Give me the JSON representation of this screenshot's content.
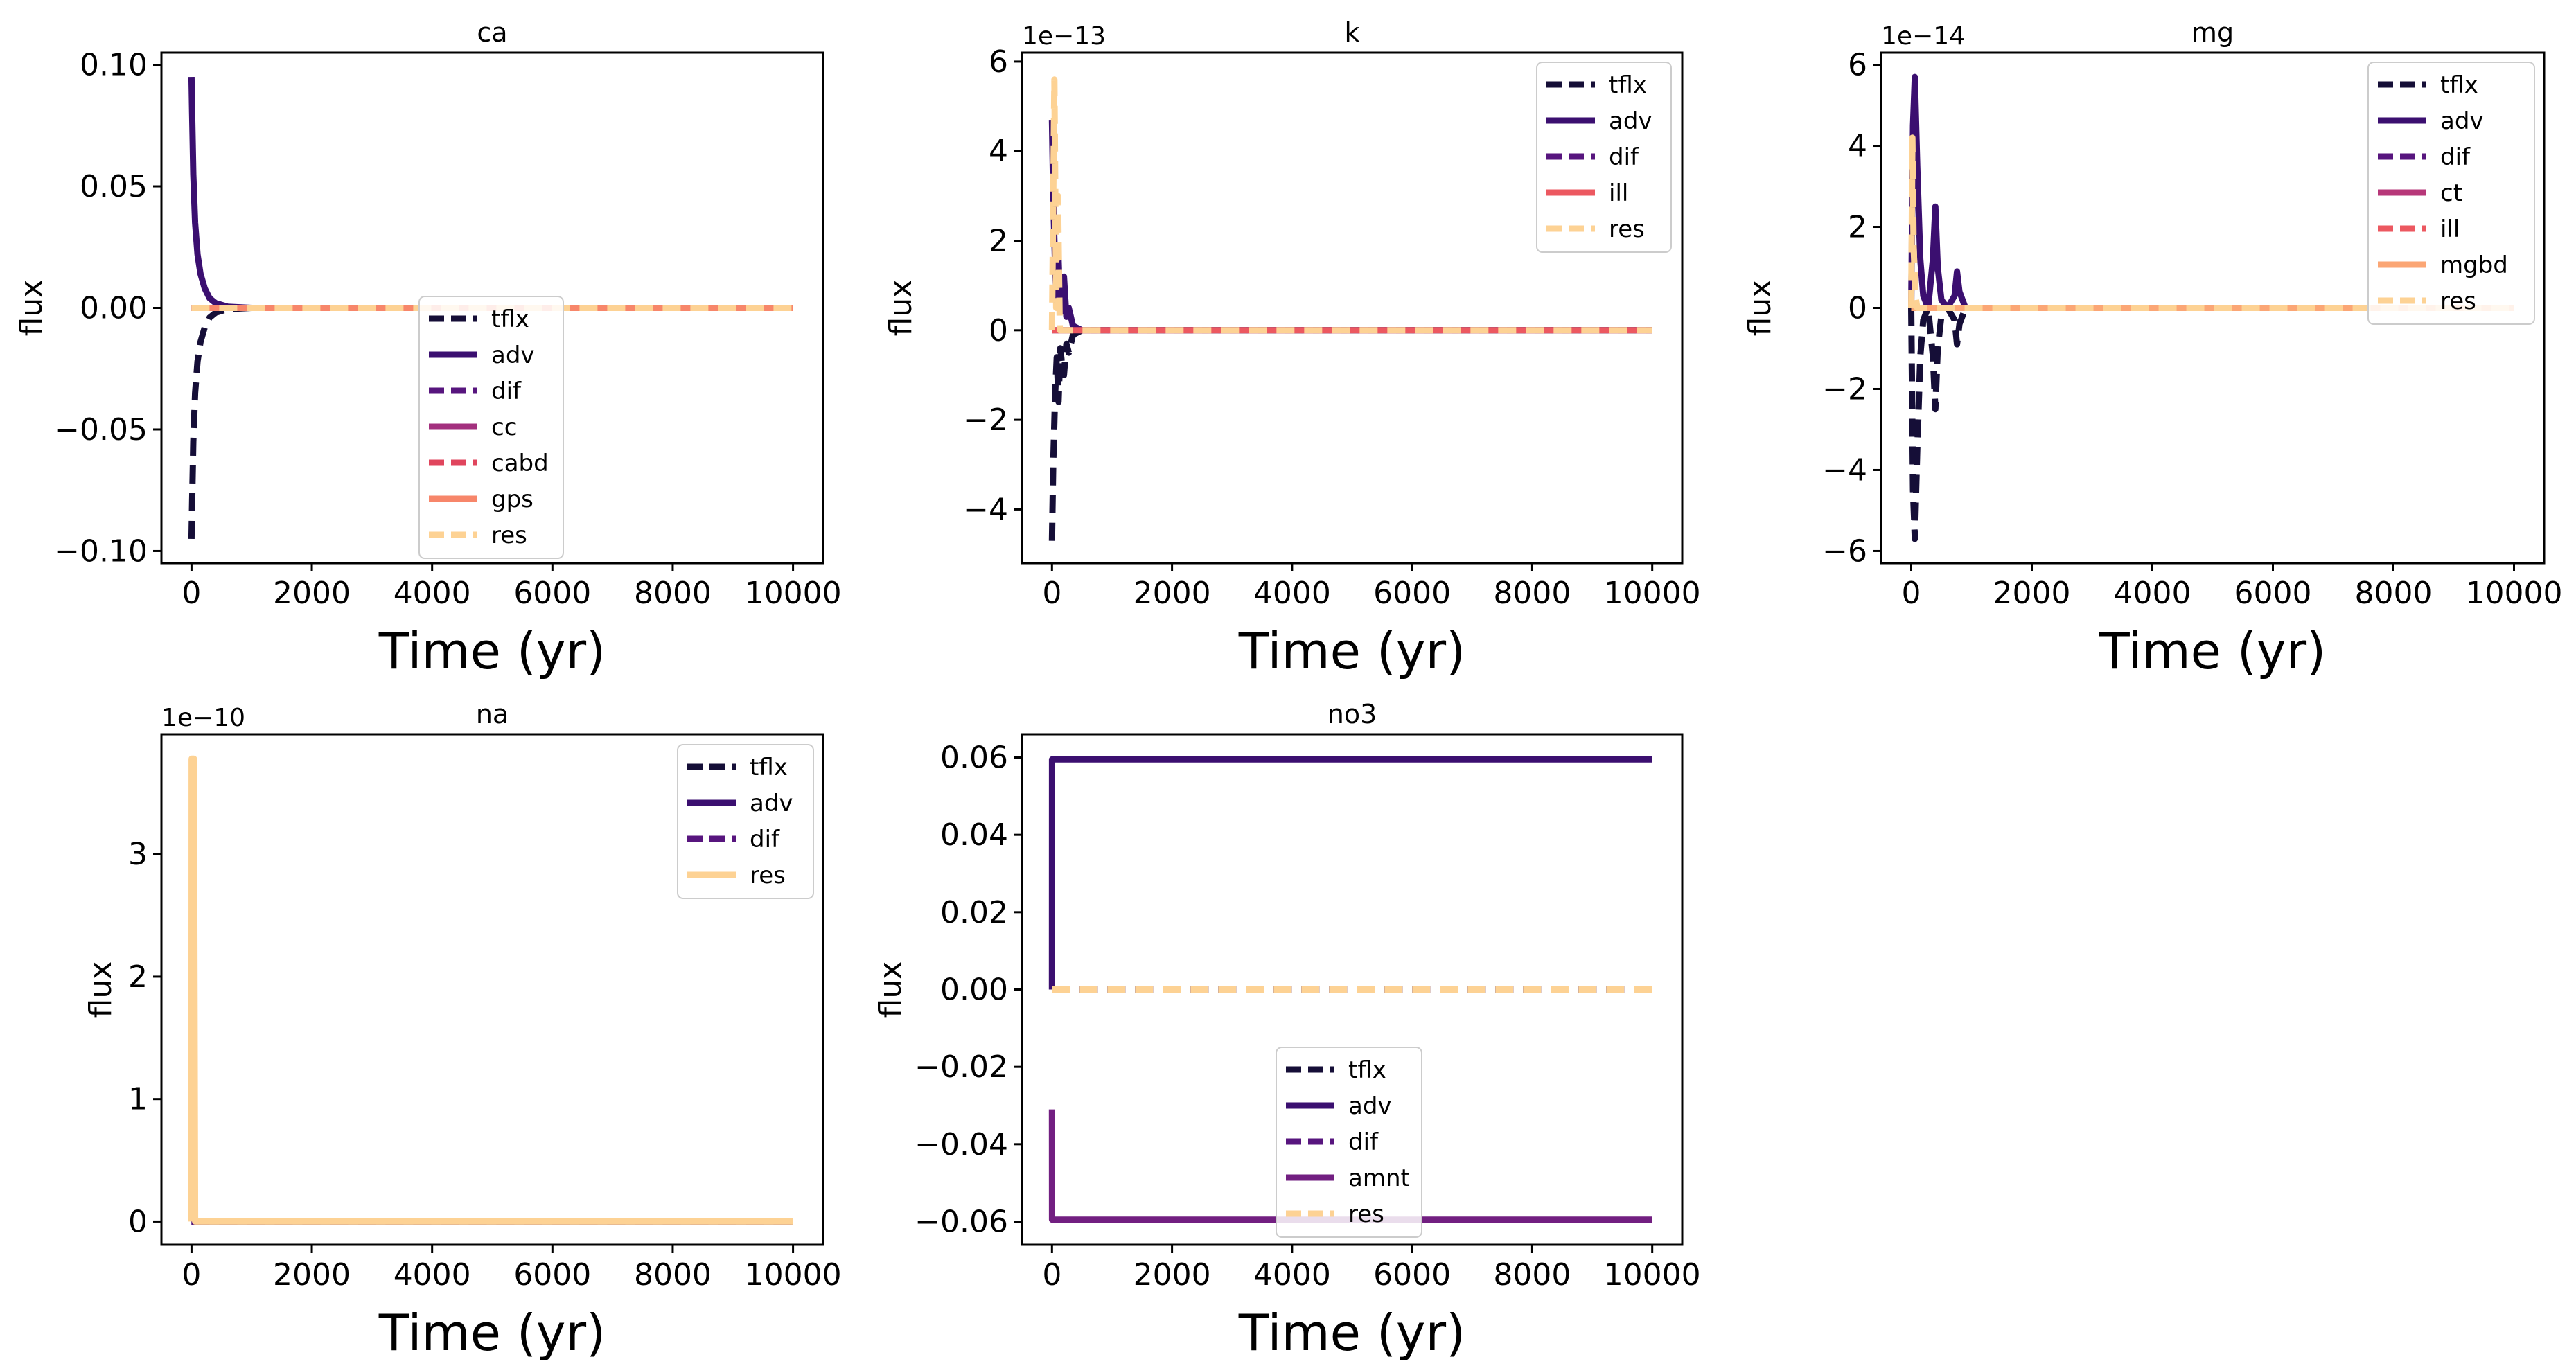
{
  "colors": {
    "tflx": "#150e37",
    "adv": "#3b0f70",
    "dif": "#57157e",
    "cc": "#a3307e",
    "ct": "#b73779",
    "amnt": "#721f81",
    "cabd": "#e0455d",
    "ill": "#ec5860",
    "gps": "#f7866a",
    "mgbd": "#fba675",
    "res": "#fdd294"
  },
  "chart_data": [
    {
      "type": "line",
      "title": "ca",
      "xlabel": "Time (yr)",
      "ylabel": "flux",
      "multiplier": "",
      "xlim": [
        -500,
        10500
      ],
      "ylim": [
        -0.105,
        0.105
      ],
      "xticks": [
        0,
        2000,
        4000,
        6000,
        8000,
        10000
      ],
      "xtick_labels": [
        "0",
        "2000",
        "4000",
        "6000",
        "8000",
        "10000"
      ],
      "yticks": [
        -0.1,
        -0.05,
        0.0,
        0.05,
        0.1
      ],
      "ytick_labels": [
        "−0.10",
        "−0.05",
        "0.00",
        "0.05",
        "0.10"
      ],
      "grid": false,
      "legend_position": "center-bottom",
      "series": [
        {
          "name": "tflx",
          "style": "dashed",
          "x": [
            0,
            10,
            30,
            60,
            100,
            150,
            220,
            300,
            400,
            600,
            1000,
            10000
          ],
          "y": [
            -0.095,
            -0.08,
            -0.055,
            -0.035,
            -0.022,
            -0.014,
            -0.008,
            -0.004,
            -0.002,
            -0.0005,
            0,
            0
          ]
        },
        {
          "name": "adv",
          "style": "solid",
          "x": [
            0,
            10,
            30,
            60,
            100,
            150,
            220,
            300,
            400,
            600,
            1000,
            10000
          ],
          "y": [
            0.095,
            0.08,
            0.055,
            0.035,
            0.022,
            0.014,
            0.008,
            0.004,
            0.002,
            0.0005,
            0,
            0
          ]
        },
        {
          "name": "dif",
          "style": "dashed",
          "x": [
            0,
            10000
          ],
          "y": [
            0,
            0
          ]
        },
        {
          "name": "cc",
          "style": "solid",
          "x": [
            0,
            10000
          ],
          "y": [
            0,
            0
          ]
        },
        {
          "name": "cabd",
          "style": "dashed",
          "x": [
            0,
            10000
          ],
          "y": [
            0,
            0
          ]
        },
        {
          "name": "gps",
          "style": "solid",
          "x": [
            0,
            10000
          ],
          "y": [
            0,
            0
          ]
        },
        {
          "name": "res",
          "style": "dashed",
          "x": [
            0,
            10000
          ],
          "y": [
            0,
            0
          ]
        }
      ]
    },
    {
      "type": "line",
      "title": "k",
      "xlabel": "Time (yr)",
      "ylabel": "flux",
      "multiplier": "1e−13",
      "xlim": [
        -500,
        10500
      ],
      "ylim": [
        -5.2,
        6.2
      ],
      "xticks": [
        0,
        2000,
        4000,
        6000,
        8000,
        10000
      ],
      "xtick_labels": [
        "0",
        "2000",
        "4000",
        "6000",
        "8000",
        "10000"
      ],
      "yticks": [
        -4,
        -2,
        0,
        2,
        4,
        6
      ],
      "ytick_labels": [
        "−4",
        "−2",
        "0",
        "2",
        "4",
        "6"
      ],
      "grid": false,
      "legend_position": "upper-right",
      "series": [
        {
          "name": "tflx",
          "style": "dashed",
          "x": [
            0,
            20,
            50,
            80,
            110,
            140,
            170,
            200,
            240,
            280,
            350,
            500,
            10000
          ],
          "y": [
            -4.7,
            -3.0,
            -1.5,
            -0.6,
            -1.6,
            -0.4,
            -0.8,
            -1.0,
            -0.3,
            -0.5,
            -0.1,
            0,
            0
          ]
        },
        {
          "name": "adv",
          "style": "solid",
          "x": [
            0,
            20,
            50,
            80,
            110,
            140,
            170,
            200,
            240,
            280,
            350,
            500,
            10000
          ],
          "y": [
            4.7,
            3.0,
            1.5,
            0.6,
            1.6,
            0.4,
            0.8,
            1.2,
            0.3,
            0.5,
            0.1,
            0,
            0
          ]
        },
        {
          "name": "dif",
          "style": "dashed",
          "x": [
            0,
            10000
          ],
          "y": [
            0,
            0
          ]
        },
        {
          "name": "ill",
          "style": "solid",
          "x": [
            0,
            10000
          ],
          "y": [
            0,
            0
          ]
        },
        {
          "name": "res",
          "style": "dashed",
          "x": [
            0,
            40,
            70,
            100,
            130,
            10000
          ],
          "y": [
            0,
            5.6,
            0.5,
            3.0,
            0,
            0
          ]
        }
      ]
    },
    {
      "type": "line",
      "title": "mg",
      "xlabel": "Time (yr)",
      "ylabel": "flux",
      "multiplier": "1e−14",
      "xlim": [
        -500,
        10500
      ],
      "ylim": [
        -6.3,
        6.3
      ],
      "xticks": [
        0,
        2000,
        4000,
        6000,
        8000,
        10000
      ],
      "xtick_labels": [
        "0",
        "2000",
        "4000",
        "6000",
        "8000",
        "10000"
      ],
      "yticks": [
        -6,
        -4,
        -2,
        0,
        2,
        4,
        6
      ],
      "ytick_labels": [
        "−6",
        "−4",
        "−2",
        "0",
        "2",
        "4",
        "6"
      ],
      "grid": false,
      "legend_position": "upper-right",
      "series": [
        {
          "name": "tflx",
          "style": "dashed",
          "x": [
            0,
            30,
            60,
            100,
            150,
            200,
            280,
            360,
            400,
            440,
            500,
            600,
            720,
            760,
            800,
            900,
            10000
          ],
          "y": [
            0,
            -4.5,
            -5.7,
            -3.5,
            -1.2,
            -0.3,
            0,
            -1.2,
            -2.5,
            -1.0,
            -0.2,
            0,
            -0.3,
            -0.9,
            -0.4,
            0,
            0
          ]
        },
        {
          "name": "adv",
          "style": "solid",
          "x": [
            0,
            30,
            60,
            100,
            150,
            200,
            280,
            360,
            400,
            440,
            500,
            600,
            720,
            760,
            800,
            900,
            10000
          ],
          "y": [
            0,
            4.5,
            5.7,
            3.5,
            1.2,
            0.3,
            0,
            1.2,
            2.5,
            1.0,
            0.2,
            0,
            0.3,
            0.9,
            0.4,
            0,
            0
          ]
        },
        {
          "name": "dif",
          "style": "dashed",
          "x": [
            0,
            10000
          ],
          "y": [
            0,
            0
          ]
        },
        {
          "name": "ct",
          "style": "solid",
          "x": [
            0,
            10000
          ],
          "y": [
            0,
            0
          ]
        },
        {
          "name": "ill",
          "style": "dashed",
          "x": [
            0,
            10000
          ],
          "y": [
            0,
            0
          ]
        },
        {
          "name": "mgbd",
          "style": "solid",
          "x": [
            0,
            10000
          ],
          "y": [
            0,
            0
          ]
        },
        {
          "name": "res",
          "style": "dashed",
          "x": [
            0,
            20,
            40,
            70,
            100,
            10000
          ],
          "y": [
            0,
            4.2,
            1.5,
            0.3,
            0,
            0
          ]
        }
      ]
    },
    {
      "type": "line",
      "title": "na",
      "xlabel": "Time (yr)",
      "ylabel": "flux",
      "multiplier": "1e−10",
      "xlim": [
        -500,
        10500
      ],
      "ylim": [
        -0.19,
        3.98
      ],
      "xticks": [
        0,
        2000,
        4000,
        6000,
        8000,
        10000
      ],
      "xtick_labels": [
        "0",
        "2000",
        "4000",
        "6000",
        "8000",
        "10000"
      ],
      "yticks": [
        0,
        1,
        2,
        3
      ],
      "ytick_labels": [
        "0",
        "1",
        "2",
        "3"
      ],
      "grid": false,
      "legend_position": "upper-right",
      "series": [
        {
          "name": "tflx",
          "style": "dashed",
          "x": [
            0,
            10000
          ],
          "y": [
            0,
            0
          ]
        },
        {
          "name": "adv",
          "style": "solid",
          "x": [
            0,
            10000
          ],
          "y": [
            0,
            0
          ]
        },
        {
          "name": "dif",
          "style": "dashed",
          "x": [
            0,
            10000
          ],
          "y": [
            0,
            0
          ]
        },
        {
          "name": "res",
          "style": "solid",
          "x": [
            0,
            2,
            40,
            60,
            10000
          ],
          "y": [
            0,
            3.78,
            3.78,
            0,
            0
          ]
        }
      ]
    },
    {
      "type": "line",
      "title": "no3",
      "xlabel": "Time (yr)",
      "ylabel": "flux",
      "multiplier": "",
      "xlim": [
        -500,
        10500
      ],
      "ylim": [
        -0.066,
        0.066
      ],
      "xticks": [
        0,
        2000,
        4000,
        6000,
        8000,
        10000
      ],
      "xtick_labels": [
        "0",
        "2000",
        "4000",
        "6000",
        "8000",
        "10000"
      ],
      "yticks": [
        -0.06,
        -0.04,
        -0.02,
        0.0,
        0.02,
        0.04,
        0.06
      ],
      "ytick_labels": [
        "−0.06",
        "−0.04",
        "−0.02",
        "0.00",
        "0.02",
        "0.04",
        "0.06"
      ],
      "grid": false,
      "legend_position": "lower-center",
      "series": [
        {
          "name": "tflx",
          "style": "dashed",
          "x": [
            0,
            10000
          ],
          "y": [
            0,
            0
          ]
        },
        {
          "name": "adv",
          "style": "solid",
          "x": [
            0,
            1,
            30,
            10000
          ],
          "y": [
            0,
            0.0595,
            0.0595,
            0.0595
          ]
        },
        {
          "name": "dif",
          "style": "dashed",
          "x": [
            0,
            10000
          ],
          "y": [
            0,
            0
          ]
        },
        {
          "name": "amnt",
          "style": "solid",
          "x": [
            0,
            1,
            30,
            10000
          ],
          "y": [
            -0.031,
            -0.0595,
            -0.0595,
            -0.0595
          ]
        },
        {
          "name": "res",
          "style": "dashed",
          "x": [
            0,
            10000
          ],
          "y": [
            0,
            0
          ]
        }
      ]
    }
  ]
}
